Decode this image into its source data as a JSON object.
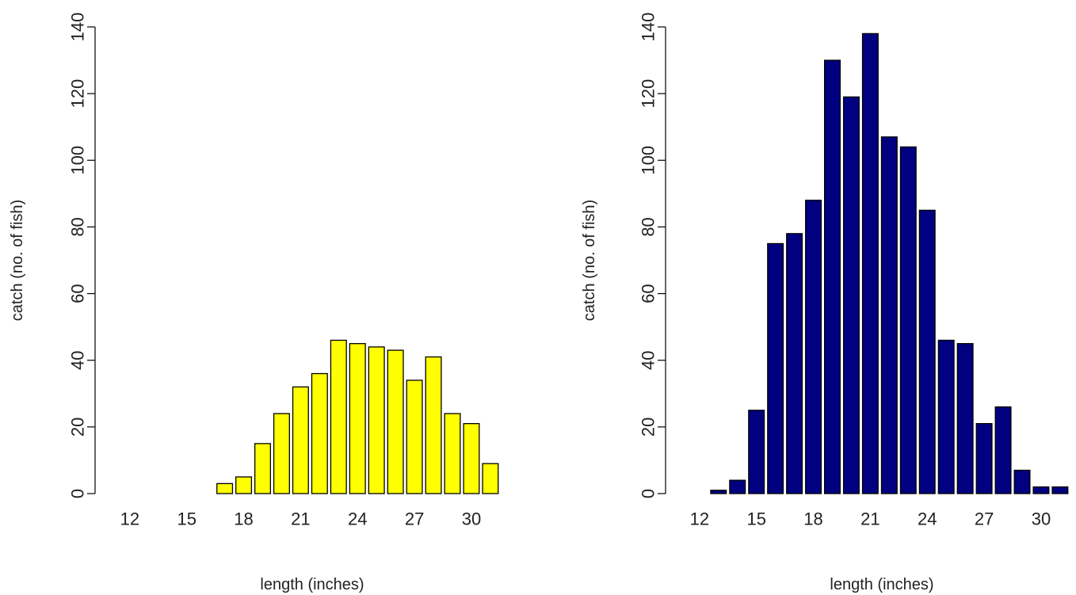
{
  "chart_data": [
    {
      "type": "bar",
      "xlabel": "length (inches)",
      "ylabel": "catch (no. of fish)",
      "ylim": [
        0,
        140
      ],
      "yticks": [
        0,
        20,
        40,
        60,
        80,
        100,
        120,
        140
      ],
      "yticks_text": [
        "0",
        "20",
        "40",
        "60",
        "80",
        "100",
        "120",
        "140"
      ],
      "x_tick_categories": [
        12,
        15,
        18,
        21,
        24,
        27,
        30
      ],
      "x_tick_text": [
        "12",
        "15",
        "18",
        "21",
        "24",
        "27",
        "30"
      ],
      "bar_color": "#ffff00",
      "categories": [
        12,
        13,
        14,
        15,
        16,
        17,
        18,
        19,
        20,
        21,
        22,
        23,
        24,
        25,
        26,
        27,
        28,
        29,
        30,
        31
      ],
      "values": [
        0,
        0,
        0,
        0,
        0,
        3,
        5,
        15,
        24,
        32,
        36,
        46,
        45,
        44,
        43,
        34,
        41,
        24,
        21,
        9
      ]
    },
    {
      "type": "bar",
      "xlabel": "length (inches)",
      "ylabel": "catch (no. of fish)",
      "ylim": [
        0,
        140
      ],
      "yticks": [
        0,
        20,
        40,
        60,
        80,
        100,
        120,
        140
      ],
      "yticks_text": [
        "0",
        "20",
        "40",
        "60",
        "80",
        "100",
        "120",
        "140"
      ],
      "x_tick_categories": [
        12,
        15,
        18,
        21,
        24,
        27,
        30
      ],
      "x_tick_text": [
        "12",
        "15",
        "18",
        "21",
        "24",
        "27",
        "30"
      ],
      "bar_color": "#000080",
      "categories": [
        12,
        13,
        14,
        15,
        16,
        17,
        18,
        19,
        20,
        21,
        22,
        23,
        24,
        25,
        26,
        27,
        28,
        29,
        30,
        31
      ],
      "values": [
        0,
        1,
        4,
        25,
        75,
        78,
        88,
        130,
        119,
        138,
        107,
        104,
        85,
        46,
        45,
        21,
        26,
        7,
        2,
        2
      ]
    }
  ]
}
